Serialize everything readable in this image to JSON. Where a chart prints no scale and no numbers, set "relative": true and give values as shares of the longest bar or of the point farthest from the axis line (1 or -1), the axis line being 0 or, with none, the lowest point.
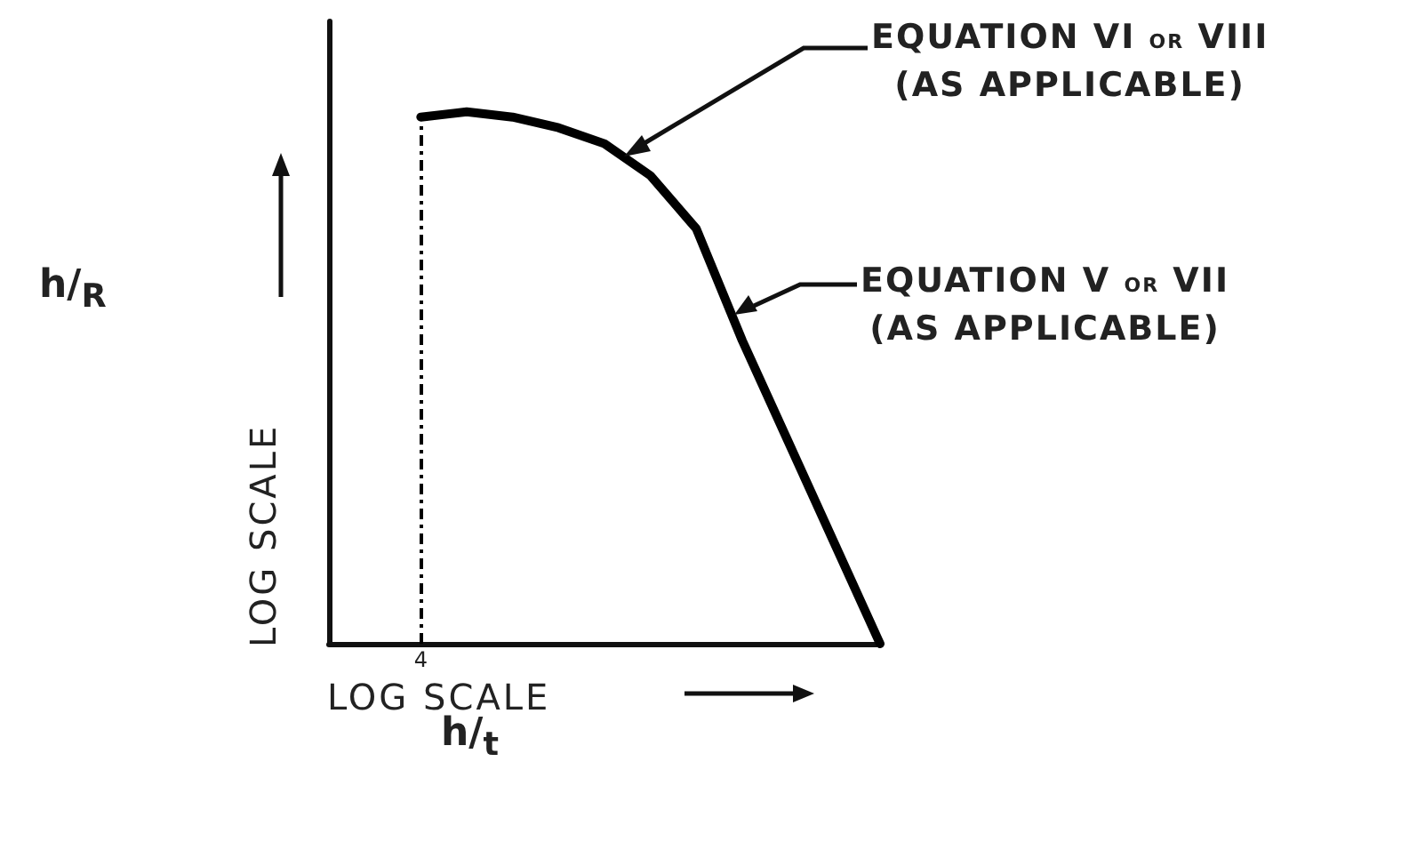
{
  "chart_data": {
    "type": "line",
    "relative": true,
    "xlabel": "h/$_{t}$",
    "categories": [
      null,
      null,
      null,
      null,
      null,
      null,
      null,
      null,
      null,
      null,
      null,
      null,
      null
    ],
    "series": [
      {
        "color": "#000000",
        "values": [
          null,
          null,
          0.99,
          1,
          0.99,
          0.97,
          0.94,
          0.88,
          0.78,
          0.57,
          0.38,
          0.19,
          0
        ]
      }
    ],
    "ref_lines": [
      {
        "axis": "x",
        "label": "4",
        "line_style": "dashed",
        "color": "#000000"
      }
    ],
    "annotations": [
      "LOG SCALE",
      "LOG SCALE",
      "EQUATION VI or VIII\n(AS APPLICABLE)",
      "EQUATION V or VII\n(AS APPLICABLE)",
      "h/$_{R}$"
    ],
    "marker": "none",
    "line_style": "solid"
  }
}
